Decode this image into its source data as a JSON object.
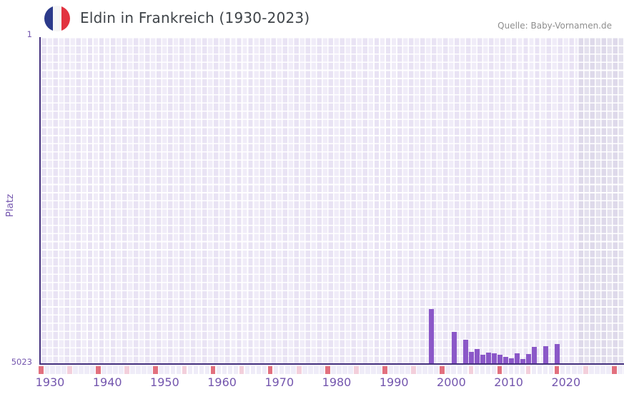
{
  "header": {
    "title": "Eldin in Frankreich (1930-2023)",
    "source": "Quelle: Baby-Vornamen.de",
    "flag_icon": "france-flag-icon"
  },
  "chart_data": {
    "type": "bar",
    "title": "Eldin in Frankreich (1930-2023)",
    "xlabel": "",
    "ylabel": "Platz",
    "grid": true,
    "legend": false,
    "x_axis": {
      "range": [
        1930,
        2032
      ],
      "data_range": [
        1930,
        2023
      ],
      "tick_years": [
        1930,
        1940,
        1950,
        1960,
        1970,
        1980,
        1990,
        2000,
        2010,
        2020
      ]
    },
    "y_axis": {
      "min": 1,
      "max": 5023,
      "inverted": true,
      "top_label": "1",
      "bottom_label": "5023"
    },
    "series": [
      {
        "name": "Platz von Eldin in Frankreich",
        "points": [
          {
            "year": 1998,
            "rank": 4190
          },
          {
            "year": 2002,
            "rank": 4540
          },
          {
            "year": 2004,
            "rank": 4660
          },
          {
            "year": 2005,
            "rank": 4850
          },
          {
            "year": 2006,
            "rank": 4800
          },
          {
            "year": 2007,
            "rank": 4890
          },
          {
            "year": 2008,
            "rank": 4860
          },
          {
            "year": 2009,
            "rank": 4870
          },
          {
            "year": 2010,
            "rank": 4890
          },
          {
            "year": 2011,
            "rank": 4920
          },
          {
            "year": 2012,
            "rank": 4950
          },
          {
            "year": 2013,
            "rank": 4870
          },
          {
            "year": 2014,
            "rank": 4960
          },
          {
            "year": 2015,
            "rank": 4880
          },
          {
            "year": 2016,
            "rank": 4770
          },
          {
            "year": 2018,
            "rank": 4760
          },
          {
            "year": 2020,
            "rank": 4730
          }
        ]
      }
    ],
    "timeline_strip": {
      "start_year": 1930,
      "decade_interval": 10,
      "half_decade_interval": 5
    }
  },
  "colors": {
    "bar": "#8b58c8",
    "axis": "#44307e",
    "tick": "#7456ae",
    "grid_base": "#f0ecf8",
    "grid_future": "#e4e1ee",
    "strip_red": "#e2707e",
    "strip_pink": "#f3cfdb",
    "strip_base": "#efecf8",
    "title": "#3f4449",
    "source": "#8e8e8e",
    "flag_blue": "#2c3a8a",
    "flag_white": "#f6f6f6",
    "flag_red": "#e23340"
  }
}
